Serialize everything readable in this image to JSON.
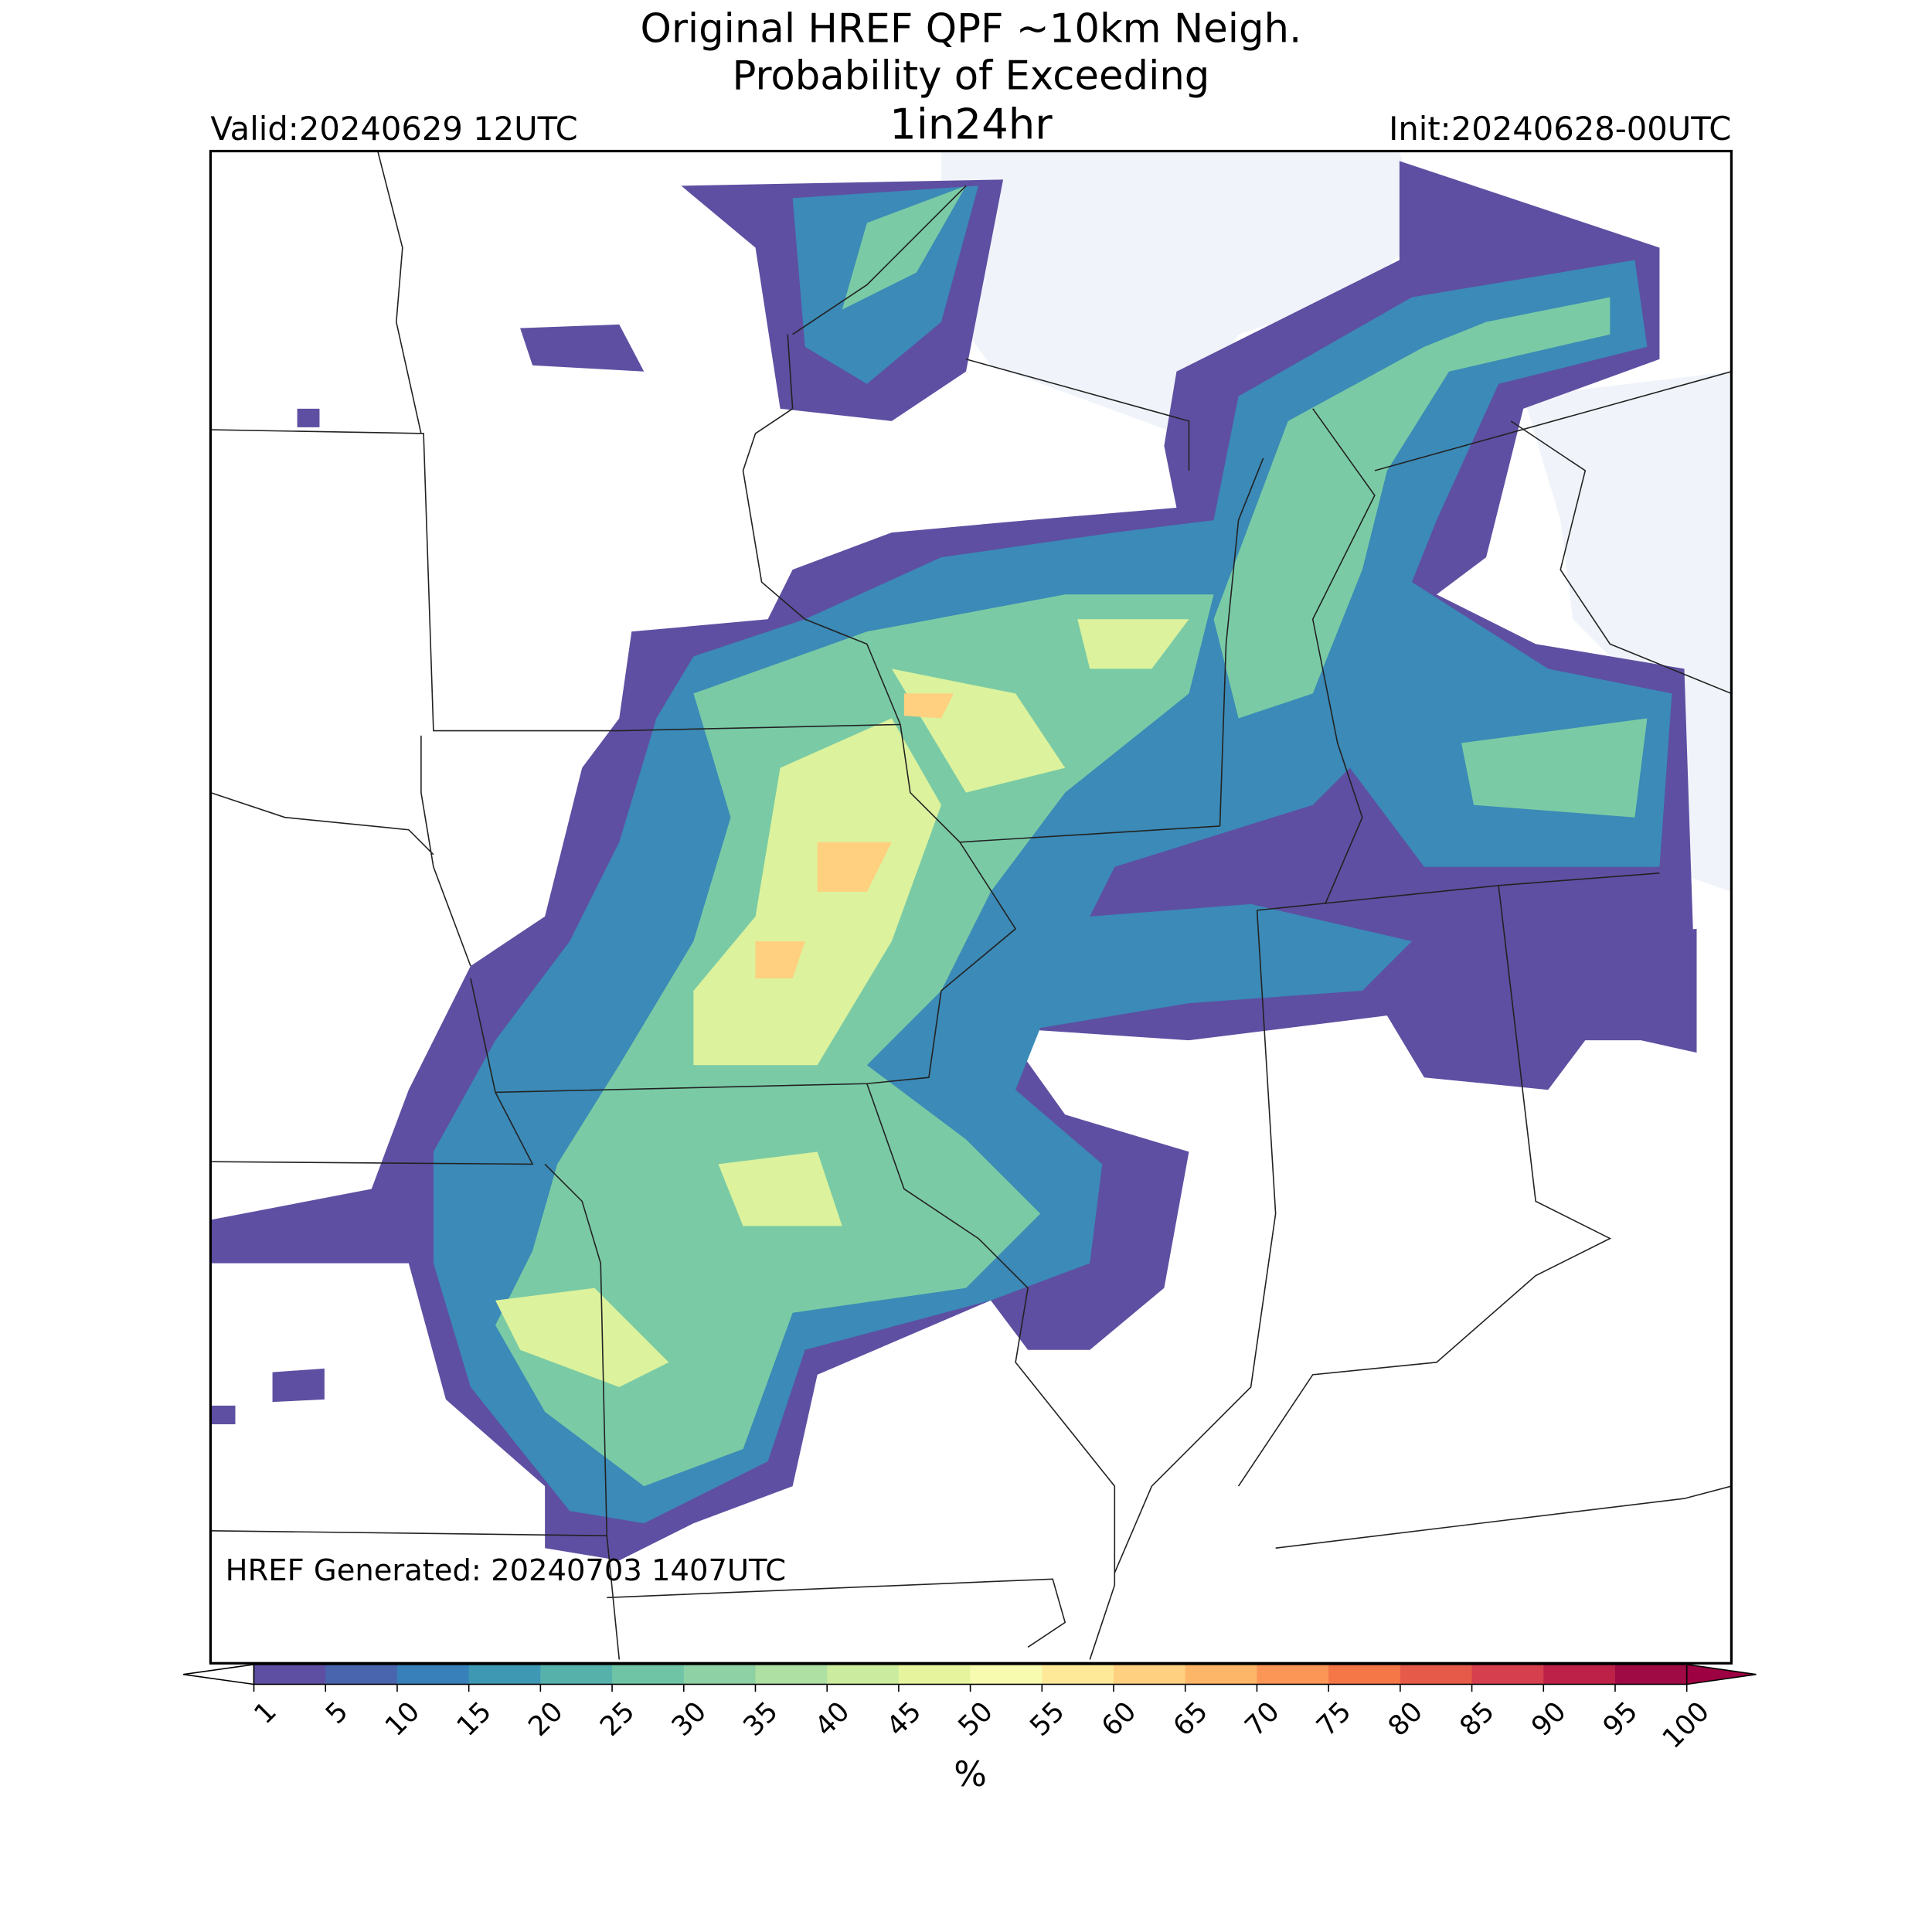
{
  "header": {
    "title_lines": [
      "Original HREF QPF ~10km Neigh.",
      "Probability of Exceeding",
      "1in24hr"
    ],
    "valid": "Valid:20240629 12UTC",
    "init": "Init:20240628-00UTC"
  },
  "footer": {
    "generated": "HREF Generated: 20240703 1407UTC"
  },
  "colorbar": {
    "ticks": [
      1,
      5,
      10,
      15,
      20,
      25,
      30,
      35,
      40,
      45,
      50,
      55,
      60,
      65,
      70,
      75,
      80,
      85,
      90,
      95,
      100
    ],
    "colors": [
      "#5e4fa2",
      "#4965ad",
      "#3780b9",
      "#3e98b4",
      "#56b1ab",
      "#6fc4a5",
      "#8dd1a4",
      "#ade0a2",
      "#cbeb9e",
      "#e6f59d",
      "#f7fbb0",
      "#fee999",
      "#fed07f",
      "#fdb567",
      "#fb9656",
      "#f57748",
      "#e65a49",
      "#d6404e",
      "#bd2148",
      "#a00a44"
    ],
    "under_color": "#ffffff",
    "over_color": "#9e0142",
    "label": "%"
  }
}
